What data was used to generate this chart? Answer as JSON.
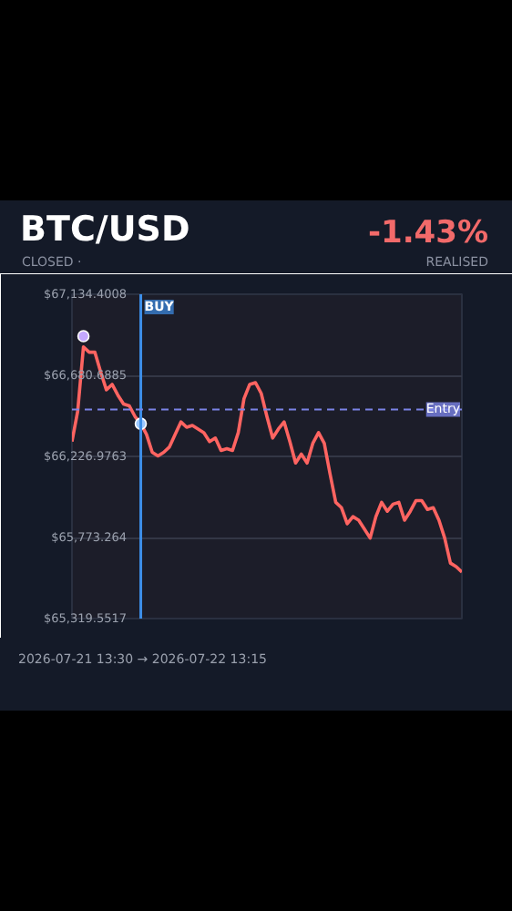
{
  "chart_data": {
    "type": "line",
    "title": "BTC/USD",
    "subtitle": "CLOSED ·",
    "xlabel": "2026-07-21 13:30 → 2026-07-22 13:15",
    "annotations": [
      "-1.43%",
      "REALISED"
    ],
    "categories": [
      null,
      null,
      null,
      null,
      null,
      null,
      null,
      null,
      null,
      null,
      null,
      null,
      null,
      null,
      null,
      null,
      null,
      null,
      null,
      null,
      null,
      null,
      null,
      null,
      null,
      null,
      null,
      null,
      null,
      null,
      null,
      null,
      null,
      null,
      null,
      null,
      null,
      null,
      null,
      null,
      null,
      null,
      null,
      null,
      null,
      null,
      null,
      null,
      null,
      null,
      null,
      null,
      null,
      null,
      null,
      null,
      null,
      null,
      null,
      null,
      null,
      null,
      null,
      null,
      null,
      null,
      null,
      null,
      null
    ],
    "ylim": [
      65319.5517,
      67134.4008
    ],
    "yticks": [
      {
        "value": 65319.5517,
        "label": "$65,319.5517"
      },
      {
        "value": 65773.264,
        "label": "$65,773.264"
      },
      {
        "value": 66226.9763,
        "label": "$66,226.9763"
      },
      {
        "value": 66680.6885,
        "label": "$66,680.6885"
      },
      {
        "value": 67134.4008,
        "label": "$67,134.4008"
      }
    ],
    "grid": "y",
    "tick_labels": "y",
    "ref_lines": [
      {
        "axis": "x",
        "label": "BUY",
        "color": "#3d8ee8"
      },
      {
        "axis": "y",
        "value": 66490,
        "label": "Entry",
        "color": "#7b83e6",
        "line_style": "dashed"
      }
    ],
    "series": [
      {
        "color": "#ff6461",
        "values": [
          66310,
          66480,
          66840,
          66810,
          66810,
          66700,
          66600,
          66630,
          66570,
          66520,
          66510,
          66450,
          66410,
          66350,
          66250,
          66230,
          66250,
          66280,
          66350,
          66420,
          66390,
          66400,
          66380,
          66360,
          66310,
          66330,
          66260,
          66270,
          66260,
          66360,
          66550,
          66630,
          66640,
          66580,
          66450,
          66330,
          66380,
          66420,
          66310,
          66190,
          66240,
          66190,
          66300,
          66360,
          66300,
          66130,
          65970,
          65940,
          65850,
          65890,
          65870,
          65820,
          65770,
          65890,
          65970,
          65920,
          65960,
          65970,
          65870,
          65920,
          65980,
          65980,
          65930,
          65940,
          65870,
          65770,
          65630,
          65610,
          65580
        ]
      },
      {
        "type": "scatter",
        "marker": "circle",
        "colors": [
          null,
          null,
          "#c4a8ff",
          null,
          null,
          null,
          null,
          null,
          null,
          null,
          null,
          null,
          "#9cc8ff",
          null,
          null,
          null,
          null,
          null,
          null,
          null,
          null,
          null,
          null,
          null,
          null,
          null,
          null,
          null,
          null,
          null,
          null,
          null,
          null,
          null,
          null,
          null,
          null,
          null,
          null,
          null,
          null,
          null,
          null,
          null,
          null,
          null,
          null,
          null,
          null,
          null,
          null,
          null,
          null,
          null,
          null,
          null,
          null,
          null,
          null,
          null,
          null,
          null,
          null,
          null,
          null,
          null,
          null,
          null,
          null
        ],
        "values": [
          null,
          null,
          66900,
          null,
          null,
          null,
          null,
          null,
          null,
          null,
          null,
          null,
          66410,
          null,
          null,
          null,
          null,
          null,
          null,
          null,
          null,
          null,
          null,
          null,
          null,
          null,
          null,
          null,
          null,
          null,
          null,
          null,
          null,
          null,
          null,
          null,
          null,
          null,
          null,
          null,
          null,
          null,
          null,
          null,
          null,
          null,
          null,
          null,
          null,
          null,
          null,
          null,
          null,
          null,
          null,
          null,
          null,
          null,
          null,
          null,
          null,
          null,
          null,
          null,
          null,
          null,
          null,
          null,
          null
        ]
      }
    ]
  }
}
